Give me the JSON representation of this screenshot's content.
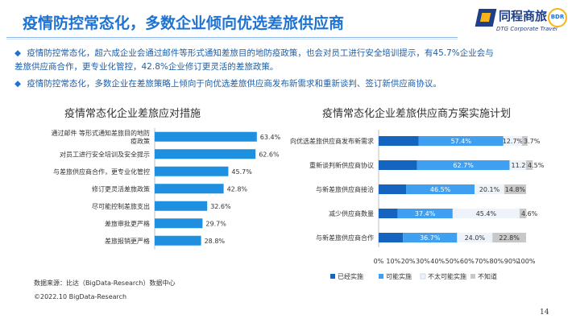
{
  "header": {
    "title": "疫情防控常态化，多数企业倾向优选差旅供应商",
    "logo_cn": "同程商旅",
    "logo_en": "DTG Corporate Travel",
    "logo_badge": "BDR"
  },
  "bullets": [
    {
      "mark": "◆",
      "lines": [
        "疫情防控常态化，超六成企业会通过邮件等形式通知差旅目的地防疫政策，也会对员工进行安全培训提示，有45.7%企业会与",
        "差旅供应商合作，更专业化管控，42.8%企业修订更灵活的差旅政策。"
      ]
    },
    {
      "mark": "◆",
      "lines": [
        "疫情防控常态化，多数企业在差旅策略上倾向于向优选差旅供应商发布新需求和重新谈判、签订新供应商协议。"
      ]
    }
  ],
  "chart_data": [
    {
      "type": "bar",
      "orientation": "horizontal",
      "title": "疫情常态化企业差旅应对措施",
      "categories": [
        "通过邮件 等形式通知差旅目的地防疫政策",
        "对员工进行安全培训及安全提示",
        "与差旅供应商合作，更专业化管控",
        "修订更灵活差旅政策",
        "尽可能控制差旅支出",
        "差旅审批更严格",
        "差旅报销更严格"
      ],
      "category_lines": [
        [
          "通过邮件 等形式通知差旅目的地防",
          "疫政策"
        ],
        [
          "对员工进行安全培训及安全提示"
        ],
        [
          "与差旅供应商合作，更专业化管控"
        ],
        [
          "修订更灵活差旅政策"
        ],
        [
          "尽可能控制差旅支出"
        ],
        [
          "差旅审批更严格"
        ],
        [
          "差旅报销更严格"
        ]
      ],
      "values": [
        63.4,
        62.6,
        45.7,
        42.8,
        32.6,
        29.7,
        28.8
      ],
      "value_labels": [
        "63.4%",
        "62.6%",
        "45.7%",
        "42.8%",
        "32.6%",
        "29.7%",
        "28.8%"
      ],
      "xlim": [
        0,
        100
      ],
      "color": "#1f8fe0"
    },
    {
      "type": "bar",
      "orientation": "horizontal",
      "stacked": true,
      "title": "疫情常态化企业差旅供应商方案实施计划",
      "categories": [
        "向优选差旅供应商发布新需求",
        "重新谈判新供应商协议",
        "与新差旅供应商接洽",
        "减少供应商数量",
        "与新差旅供应商合作"
      ],
      "series": [
        {
          "name": "已经实施",
          "values": [
            27.2,
            26.1,
            18.6,
            12.8,
            16.5
          ],
          "color": "#1565c0",
          "labels": [
            "",
            "",
            "",
            "",
            ""
          ]
        },
        {
          "name": "可能实施",
          "values": [
            57.4,
            62.7,
            46.5,
            37.4,
            36.7
          ],
          "color": "#3f9ff0",
          "labels": [
            "57.4%",
            "62.7%",
            "46.5%",
            "37.4%",
            "36.7%"
          ]
        },
        {
          "name": "不太可能实施",
          "values": [
            12.7,
            11.2,
            20.1,
            45.4,
            24.0
          ],
          "color": "#eef3fa",
          "labels": [
            "12.7%",
            "11.2%",
            "20.1%",
            "45.4%",
            "24.0%"
          ]
        },
        {
          "name": "不知道",
          "values": [
            3.7,
            4.5,
            14.8,
            4.6,
            22.8
          ],
          "color": "#c8c8c8",
          "labels": [
            "3.7%",
            "4.5%",
            "14.8%",
            "4.6%",
            "22.8%"
          ]
        }
      ],
      "xlim": [
        0,
        100
      ],
      "xticks": [
        "0%",
        "10%",
        "20%",
        "30%",
        "40%",
        "50%",
        "60%",
        "70%",
        "80%",
        "90%",
        "100%"
      ],
      "legend_position": "bottom"
    }
  ],
  "footer": {
    "source": "数据来源：比达（BigData-Research）数据中心",
    "copyright": "©2022.10 BigData-Research",
    "page_number": "14"
  }
}
